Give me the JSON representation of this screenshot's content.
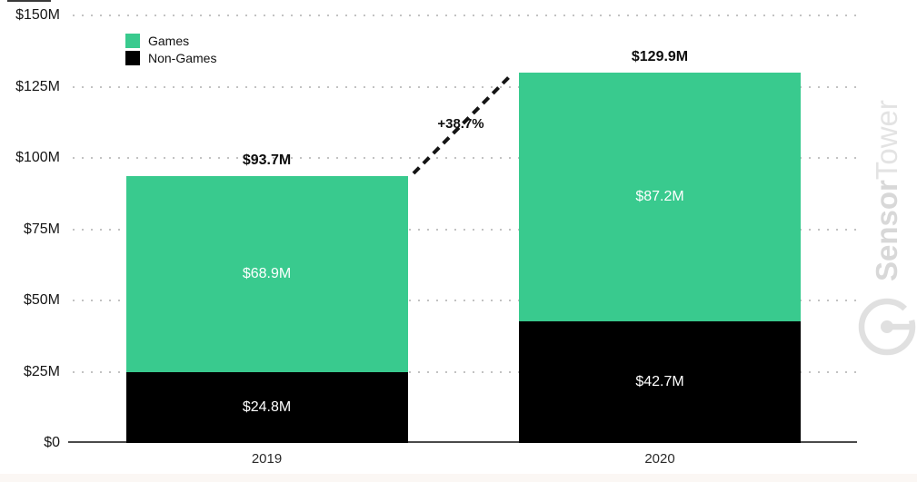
{
  "chart_data": {
    "type": "bar",
    "stacked": true,
    "title": "",
    "categories": [
      "2019",
      "2020"
    ],
    "series": [
      {
        "name": "Games",
        "values": [
          68.9,
          87.2
        ],
        "labels": [
          "$68.9M",
          "$87.2M"
        ],
        "color": "#39ca8e"
      },
      {
        "name": "Non-Games",
        "values": [
          24.8,
          42.7
        ],
        "labels": [
          "$24.8M",
          "$42.7M"
        ],
        "color": "#000000"
      }
    ],
    "totals": [
      93.7,
      129.9
    ],
    "total_labels": [
      "$93.7M",
      "$129.9M"
    ],
    "growth_annotation": "+38.7%",
    "ylim": [
      0,
      150
    ],
    "yticks": [
      {
        "value": 0,
        "label": "$0"
      },
      {
        "value": 25,
        "label": "$25M"
      },
      {
        "value": 50,
        "label": "$50M"
      },
      {
        "value": 75,
        "label": "$75M"
      },
      {
        "value": 100,
        "label": "$100M"
      },
      {
        "value": 125,
        "label": "$125M"
      },
      {
        "value": 150,
        "label": "$150M"
      }
    ],
    "grid": "dotted-horizontal",
    "legend_position": "top-left"
  },
  "watermark": {
    "bold_part": "Sensor",
    "light_part": "Tower",
    "logo_icon": "sensortower-logo"
  },
  "colors": {
    "games": "#39ca8e",
    "non_games": "#000000",
    "grid_dot": "#c2c2c2",
    "axis_line": "#4a4a4a",
    "total_label": "#0d0d0d",
    "bar_label": "#ffffff",
    "watermark": "#dedede"
  }
}
